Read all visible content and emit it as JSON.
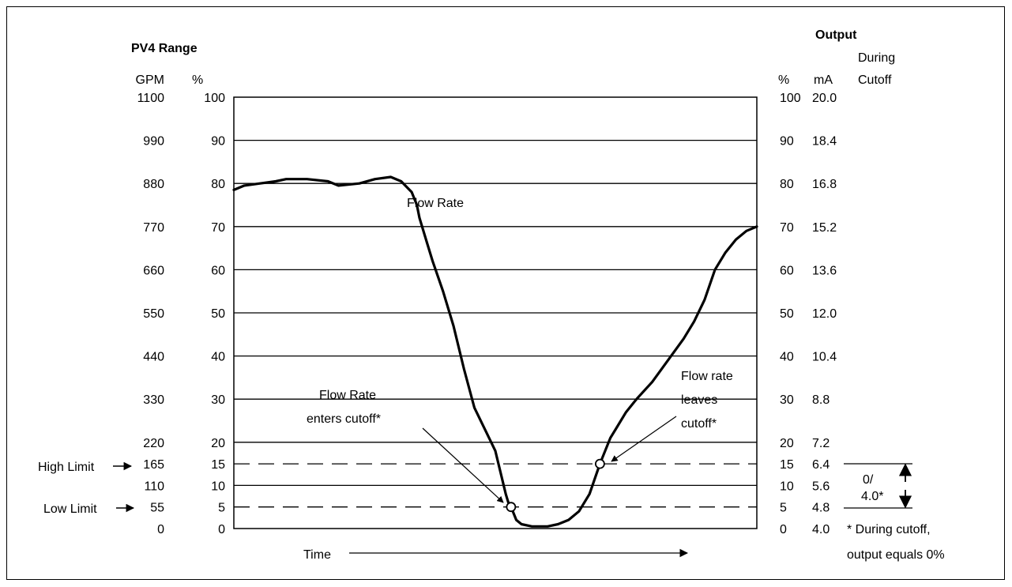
{
  "headers": {
    "pv4_range": "PV4 Range",
    "gpm": "GPM",
    "pct_left": "%",
    "pct_right": "%",
    "ma": "mA",
    "output": "Output",
    "during": "During",
    "cutoff": "Cutoff"
  },
  "annotations": {
    "high_limit": "High Limit",
    "low_limit": "Low Limit",
    "flow_rate": "Flow Rate",
    "enters_1": "Flow Rate",
    "enters_2": "enters cutoff*",
    "leaves_1": "Flow rate",
    "leaves_2": "leaves",
    "leaves_3": "cutoff*",
    "cutoff_value_1": "0/",
    "cutoff_value_2": "4.0*",
    "footnote_1": "* During cutoff,",
    "footnote_2": "output equals 0%",
    "time": "Time"
  },
  "chart_data": {
    "type": "line",
    "xlabel": "Time",
    "ylim": [
      0,
      100
    ],
    "ticks": [
      {
        "pct": "100",
        "gpm": "1100",
        "ma": "20.0"
      },
      {
        "pct": "90",
        "gpm": "990",
        "ma": "18.4"
      },
      {
        "pct": "80",
        "gpm": "880",
        "ma": "16.8"
      },
      {
        "pct": "70",
        "gpm": "770",
        "ma": "15.2"
      },
      {
        "pct": "60",
        "gpm": "660",
        "ma": "13.6"
      },
      {
        "pct": "50",
        "gpm": "550",
        "ma": "12.0"
      },
      {
        "pct": "40",
        "gpm": "440",
        "ma": "10.4"
      },
      {
        "pct": "30",
        "gpm": "330",
        "ma": "8.8"
      },
      {
        "pct": "20",
        "gpm": "220",
        "ma": "7.2"
      },
      {
        "pct": "15",
        "gpm": "165",
        "ma": "6.4"
      },
      {
        "pct": "10",
        "gpm": "110",
        "ma": "5.6"
      },
      {
        "pct": "5",
        "gpm": "55",
        "ma": "4.8"
      },
      {
        "pct": "0",
        "gpm": "0",
        "ma": "4.0"
      }
    ],
    "solid_gridlines": [
      90,
      80,
      70,
      60,
      50,
      40,
      30,
      20,
      10
    ],
    "dashed_limits": {
      "high": 15,
      "low": 5
    },
    "series": [
      {
        "name": "Flow Rate",
        "x": [
          0,
          2,
          5,
          8,
          10,
          14,
          18,
          20,
          24,
          27,
          30,
          32,
          34,
          35,
          35.5,
          36,
          37,
          38,
          40,
          42,
          44,
          46,
          48,
          50,
          51,
          52,
          52.5,
          53,
          53.5,
          54,
          55,
          57,
          60,
          62,
          64,
          66,
          68,
          69,
          70,
          71,
          72,
          73,
          75,
          77,
          80,
          83,
          86,
          88,
          90,
          92,
          94,
          96,
          98,
          100
        ],
        "y": [
          78.5,
          79.5,
          80,
          80.5,
          81,
          81,
          80.5,
          79.5,
          80,
          81,
          81.5,
          80.5,
          78,
          75,
          72,
          70,
          66,
          62,
          55,
          47,
          37,
          28,
          23,
          18,
          13,
          8,
          6,
          5,
          3.5,
          2,
          1,
          0.5,
          0.5,
          1,
          2,
          4,
          8,
          11.5,
          15,
          18,
          21,
          23,
          27,
          30,
          34,
          39,
          44,
          48,
          53,
          60,
          64,
          67,
          69,
          70
        ]
      }
    ],
    "markers": [
      {
        "label": "enters cutoff",
        "x": 53,
        "y": 5
      },
      {
        "label": "leaves cutoff",
        "x": 70,
        "y": 15
      }
    ]
  }
}
